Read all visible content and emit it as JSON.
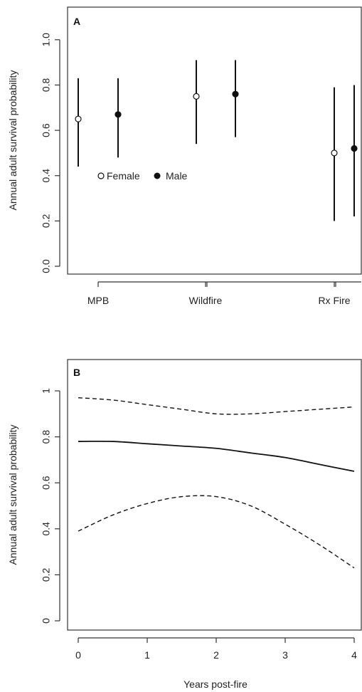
{
  "chart_data": [
    {
      "type": "scatter",
      "panel_label": "A",
      "ylabel": "Annual adult survival probability",
      "xlabel": "",
      "categories": [
        "MPB",
        "Wildfire",
        "Rx Fire"
      ],
      "ylim": [
        0,
        1.1
      ],
      "yticks": [
        "0.0",
        "0.2",
        "0.4",
        "0.6",
        "0.8",
        "1.0"
      ],
      "yticks_values": [
        0,
        0.2,
        0.4,
        0.6,
        0.8,
        1.0
      ],
      "legend_position": "center-left",
      "series": [
        {
          "name": "Female",
          "marker": "open-circle",
          "values": [
            0.65,
            0.75,
            0.5
          ],
          "lower": [
            0.44,
            0.54,
            0.2
          ],
          "upper": [
            0.83,
            0.91,
            0.79
          ]
        },
        {
          "name": "Male",
          "marker": "filled-circle",
          "values": [
            0.67,
            0.76,
            0.52
          ],
          "lower": [
            0.48,
            0.57,
            0.22
          ],
          "upper": [
            0.83,
            0.91,
            0.8
          ]
        }
      ]
    },
    {
      "type": "line",
      "panel_label": "B",
      "ylabel": "Annual adult survival probability",
      "xlabel": "Years post-fire",
      "xlim": [
        0,
        4
      ],
      "ylim": [
        0,
        1.1
      ],
      "xticks": [
        "0",
        "1",
        "2",
        "3",
        "4"
      ],
      "xticks_values": [
        0,
        1,
        2,
        3,
        4
      ],
      "yticks": [
        "0",
        "0.2",
        "0.4",
        "0.6",
        "0.8",
        "1"
      ],
      "yticks_values": [
        0,
        0.2,
        0.4,
        0.6,
        0.8,
        1.0
      ],
      "x": [
        0,
        0.5,
        1,
        1.5,
        2,
        2.5,
        3,
        3.5,
        4
      ],
      "series": [
        {
          "role": "estimate",
          "style": "solid",
          "values": [
            0.78,
            0.78,
            0.77,
            0.76,
            0.75,
            0.73,
            0.71,
            0.68,
            0.65
          ]
        },
        {
          "role": "upper",
          "style": "dashed",
          "values": [
            0.97,
            0.96,
            0.94,
            0.92,
            0.9,
            0.9,
            0.91,
            0.92,
            0.93
          ]
        },
        {
          "role": "lower",
          "style": "dashed",
          "values": [
            0.39,
            0.46,
            0.51,
            0.54,
            0.54,
            0.5,
            0.42,
            0.33,
            0.23
          ]
        }
      ]
    }
  ]
}
